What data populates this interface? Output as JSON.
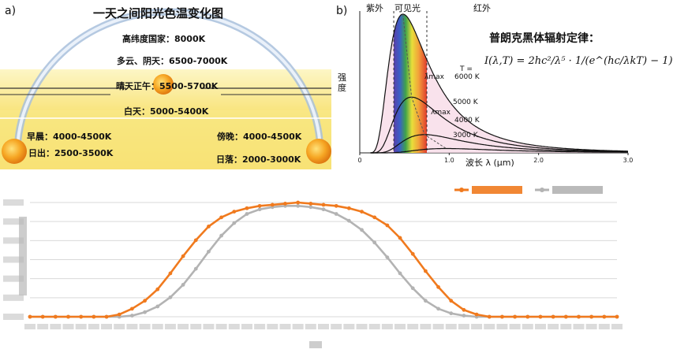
{
  "panel_a": {
    "letter": "a)",
    "title": "一天之间阳光色温变化图",
    "labels": {
      "high_lat": "高纬度国家：8000K",
      "cloudy": "多云、阴天：6500-7000K",
      "noon": "晴天正午：5500-5700K",
      "daytime": "白天：5000-5400K",
      "morning": "早晨：4000-4500K",
      "evening": "傍晚：4000-4500K",
      "sunrise": "日出：2500-3500K",
      "sunset": "日落：2000-3000K"
    }
  },
  "panel_b": {
    "letter": "b)",
    "region_uv": "紫外",
    "region_visible": "可见光",
    "region_ir": "红外",
    "formula_title": "普朗克黑体辐射定律：",
    "formula": "I(λ,T) = 2hc²/λ⁵ · 1/(e^(hc/λkT) − 1)",
    "ylabel": "强度",
    "xlabel": "波长 λ (μm)",
    "lambda_max": "λmax",
    "t_label": "T =",
    "curves": [
      {
        "temp_label": "6000 K",
        "T": 6000
      },
      {
        "temp_label": "5000 K",
        "T": 5000
      },
      {
        "temp_label": "4000 K",
        "T": 4000
      },
      {
        "temp_label": "3000 K",
        "T": 3000
      }
    ],
    "x_ticks": [
      "0",
      "1.0",
      "2.0",
      "3.0"
    ],
    "x_range": [
      0,
      3.0
    ]
  },
  "colors": {
    "orange": "#f07a1e",
    "gray": "#b3b3b3",
    "grid": "#d9d9d9",
    "sun": "#f4a824"
  },
  "chart_data": {
    "type": "line",
    "ylabel": "",
    "xlabel": "",
    "legend_position": "top-right",
    "grid": true,
    "ylim": [
      0,
      1
    ],
    "series": [
      {
        "name": "",
        "color": "#f07a1e",
        "values": [
          0,
          0,
          0,
          0,
          0,
          0,
          0,
          0.02,
          0.07,
          0.14,
          0.24,
          0.38,
          0.53,
          0.67,
          0.79,
          0.87,
          0.92,
          0.95,
          0.97,
          0.98,
          0.99,
          1.0,
          0.99,
          0.98,
          0.97,
          0.95,
          0.92,
          0.87,
          0.8,
          0.69,
          0.55,
          0.4,
          0.26,
          0.14,
          0.06,
          0.02,
          0,
          0,
          0,
          0,
          0,
          0,
          0,
          0,
          0,
          0,
          0
        ]
      },
      {
        "name": "",
        "color": "#b3b3b3",
        "values": [
          0,
          0,
          0,
          0,
          0,
          0,
          0,
          0,
          0.01,
          0.04,
          0.09,
          0.17,
          0.28,
          0.42,
          0.57,
          0.71,
          0.82,
          0.9,
          0.94,
          0.96,
          0.97,
          0.97,
          0.96,
          0.94,
          0.9,
          0.84,
          0.76,
          0.65,
          0.52,
          0.38,
          0.25,
          0.14,
          0.07,
          0.03,
          0.01,
          0,
          0,
          0,
          0,
          0,
          0,
          0,
          0,
          0,
          0,
          0,
          0
        ]
      }
    ]
  }
}
